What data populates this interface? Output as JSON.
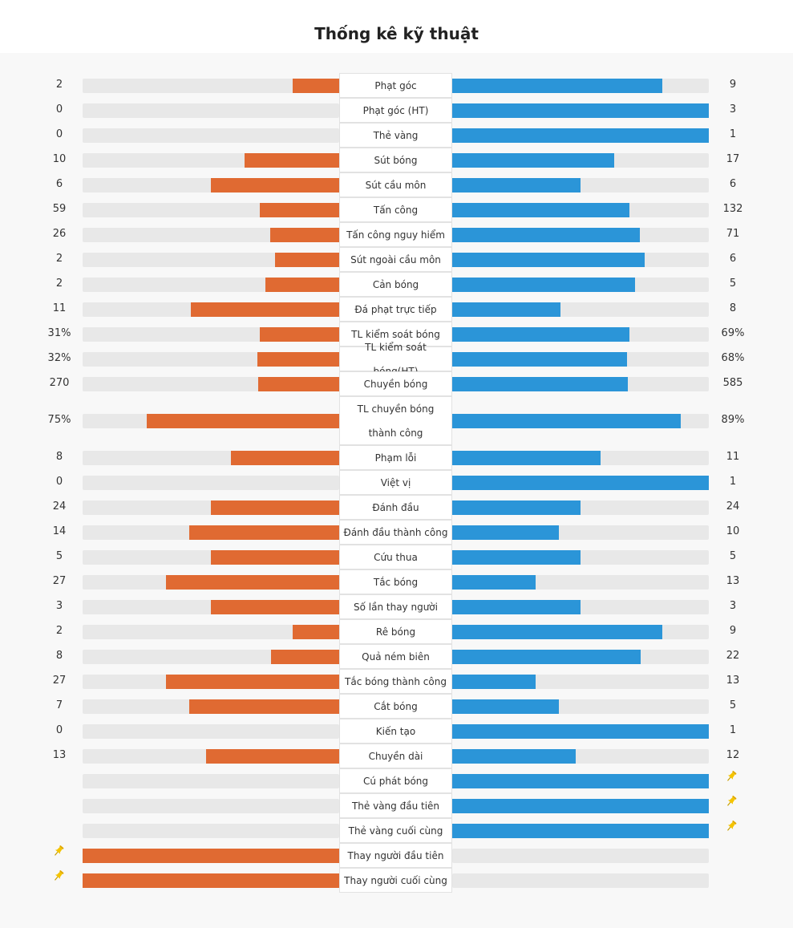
{
  "title": "Thống kê kỹ thuật",
  "colors": {
    "home": "#e06a32",
    "away": "#2b95d8",
    "track": "#e8e8e8"
  },
  "icons": {
    "marker": "pushpin-icon"
  },
  "stats": [
    {
      "label": "Phạt góc",
      "home": "2",
      "away": "9",
      "homePct": 18.2,
      "awayPct": 81.8
    },
    {
      "label": "Phạt góc (HT)",
      "home": "0",
      "away": "3",
      "homePct": 0,
      "awayPct": 100
    },
    {
      "label": "Thẻ vàng",
      "home": "0",
      "away": "1",
      "homePct": 0,
      "awayPct": 100
    },
    {
      "label": "Sút bóng",
      "home": "10",
      "away": "17",
      "homePct": 37,
      "awayPct": 63
    },
    {
      "label": "Sút cầu môn",
      "home": "6",
      "away": "6",
      "homePct": 50,
      "awayPct": 50
    },
    {
      "label": "Tấn công",
      "home": "59",
      "away": "132",
      "homePct": 30.9,
      "awayPct": 69.1
    },
    {
      "label": "Tấn công nguy hiểm",
      "home": "26",
      "away": "71",
      "homePct": 26.8,
      "awayPct": 73.2
    },
    {
      "label": "Sút ngoài cầu môn",
      "home": "2",
      "away": "6",
      "homePct": 25,
      "awayPct": 75
    },
    {
      "label": "Cản bóng",
      "home": "2",
      "away": "5",
      "homePct": 28.6,
      "awayPct": 71.4
    },
    {
      "label": "Đá phạt trực tiếp",
      "home": "11",
      "away": "8",
      "homePct": 57.9,
      "awayPct": 42.1
    },
    {
      "label": "TL kiểm soát bóng",
      "home": "31%",
      "away": "69%",
      "homePct": 31,
      "awayPct": 69
    },
    {
      "label": "TL kiểm soát bóng(HT)",
      "home": "32%",
      "away": "68%",
      "homePct": 32,
      "awayPct": 68
    },
    {
      "label": "Chuyền bóng",
      "home": "270",
      "away": "585",
      "homePct": 31.6,
      "awayPct": 68.4
    },
    {
      "label": "TL chuyền bóng thành công",
      "home": "75%",
      "away": "89%",
      "homePct": 75,
      "awayPct": 89,
      "tall": true
    },
    {
      "label": "Phạm lỗi",
      "home": "8",
      "away": "11",
      "homePct": 42.1,
      "awayPct": 57.9
    },
    {
      "label": "Việt vị",
      "home": "0",
      "away": "1",
      "homePct": 0,
      "awayPct": 100
    },
    {
      "label": "Đánh đầu",
      "home": "24",
      "away": "24",
      "homePct": 50,
      "awayPct": 50
    },
    {
      "label": "Đánh đầu thành công",
      "home": "14",
      "away": "10",
      "homePct": 58.3,
      "awayPct": 41.7
    },
    {
      "label": "Cứu thua",
      "home": "5",
      "away": "5",
      "homePct": 50,
      "awayPct": 50
    },
    {
      "label": "Tắc bóng",
      "home": "27",
      "away": "13",
      "homePct": 67.5,
      "awayPct": 32.5
    },
    {
      "label": "Số lần thay người",
      "home": "3",
      "away": "3",
      "homePct": 50,
      "awayPct": 50
    },
    {
      "label": "Rê bóng",
      "home": "2",
      "away": "9",
      "homePct": 18.2,
      "awayPct": 81.8
    },
    {
      "label": "Quả ném biên",
      "home": "8",
      "away": "22",
      "homePct": 26.7,
      "awayPct": 73.3
    },
    {
      "label": "Tắc bóng thành công",
      "home": "27",
      "away": "13",
      "homePct": 67.5,
      "awayPct": 32.5
    },
    {
      "label": "Cắt bóng",
      "home": "7",
      "away": "5",
      "homePct": 58.3,
      "awayPct": 41.7
    },
    {
      "label": "Kiến tạo",
      "home": "0",
      "away": "1",
      "homePct": 0,
      "awayPct": 100
    },
    {
      "label": "Chuyền dài",
      "home": "13",
      "away": "12",
      "homePct": 52,
      "awayPct": 48
    },
    {
      "label": "Cú phát bóng",
      "home": "",
      "away": "",
      "homePct": 0,
      "awayPct": 100,
      "pin": "away"
    },
    {
      "label": "Thẻ vàng đầu tiên",
      "home": "",
      "away": "",
      "homePct": 0,
      "awayPct": 100,
      "pin": "away"
    },
    {
      "label": "Thẻ vàng cuối cùng",
      "home": "",
      "away": "",
      "homePct": 0,
      "awayPct": 100,
      "pin": "away"
    },
    {
      "label": "Thay người đầu tiên",
      "home": "",
      "away": "",
      "homePct": 100,
      "awayPct": 0,
      "pin": "home"
    },
    {
      "label": "Thay người cuối cùng",
      "home": "",
      "away": "",
      "homePct": 100,
      "awayPct": 0,
      "pin": "home"
    }
  ]
}
